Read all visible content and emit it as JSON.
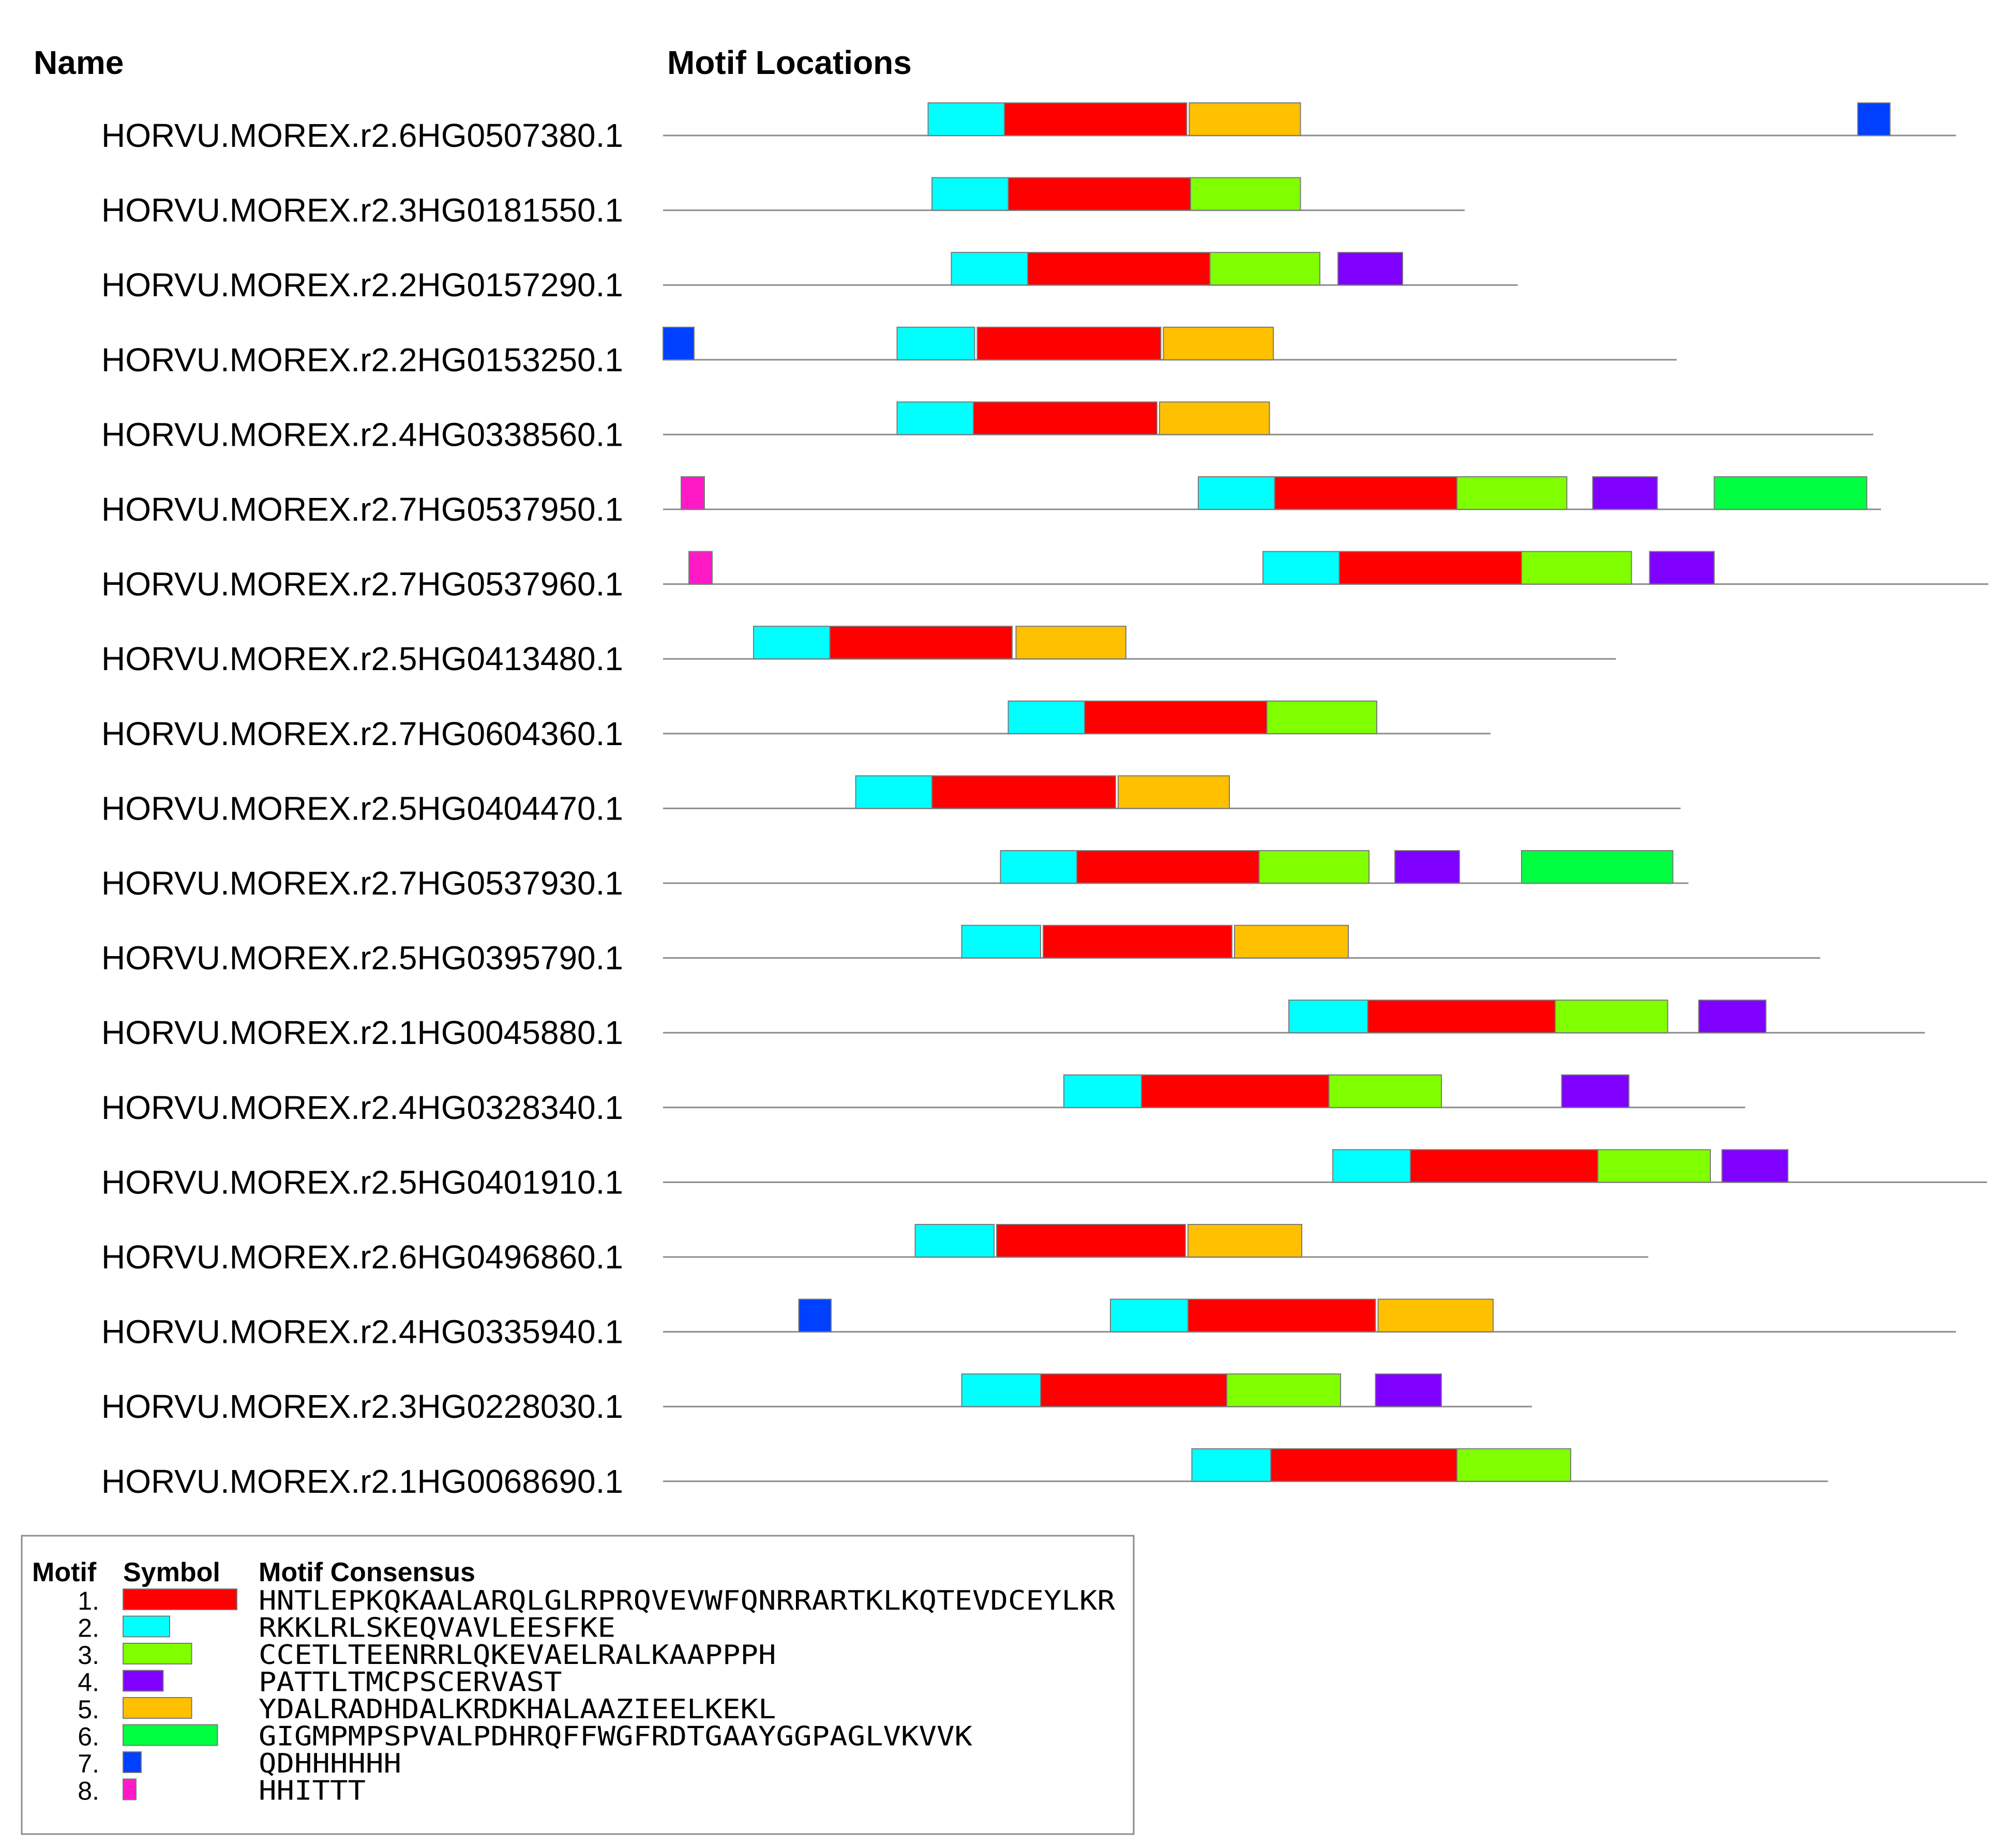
{
  "headers": {
    "name": "Name",
    "locations": "Motif Locations"
  },
  "colors": {
    "1": "#ff0000",
    "2": "#00ffff",
    "3": "#80ff00",
    "4": "#8000ff",
    "5": "#ffc000",
    "6": "#00ff40",
    "7": "#0040ff",
    "8": "#ff1ac6"
  },
  "chart_data": {
    "type": "motif-diagram",
    "sequences": [
      {
        "name": "HORVU.MOREX.r2.6HG0507380.1",
        "length": 1000,
        "motifs": [
          [
            2,
            205,
            264
          ],
          [
            1,
            264,
            405
          ],
          [
            5,
            407,
            493
          ],
          [
            7,
            924,
            949
          ]
        ]
      },
      {
        "name": "HORVU.MOREX.r2.3HG0181550.1",
        "length": 620,
        "motifs": [
          [
            2,
            208,
            267
          ],
          [
            1,
            267,
            408
          ],
          [
            3,
            408,
            493
          ]
        ]
      },
      {
        "name": "HORVU.MOREX.r2.2HG0157290.1",
        "length": 661,
        "motifs": [
          [
            2,
            223,
            282
          ],
          [
            1,
            282,
            423
          ],
          [
            3,
            423,
            508
          ],
          [
            4,
            522,
            572
          ]
        ]
      },
      {
        "name": "HORVU.MOREX.r2.2HG0153250.1",
        "length": 784,
        "motifs": [
          [
            7,
            0,
            24
          ],
          [
            2,
            181,
            241
          ],
          [
            1,
            243,
            385
          ],
          [
            5,
            387,
            472
          ]
        ]
      },
      {
        "name": "HORVU.MOREX.r2.4HG0338560.1",
        "length": 936,
        "motifs": [
          [
            2,
            181,
            240
          ],
          [
            1,
            240,
            382
          ],
          [
            5,
            384,
            469
          ]
        ]
      },
      {
        "name": "HORVU.MOREX.r2.7HG0537950.1",
        "length": 942,
        "motifs": [
          [
            8,
            14,
            32
          ],
          [
            2,
            414,
            473
          ],
          [
            1,
            473,
            614
          ],
          [
            3,
            614,
            699
          ],
          [
            4,
            719,
            769
          ],
          [
            6,
            813,
            931
          ]
        ]
      },
      {
        "name": "HORVU.MOREX.r2.7HG0537960.1",
        "length": 1025,
        "motifs": [
          [
            8,
            20,
            38
          ],
          [
            2,
            464,
            523
          ],
          [
            1,
            523,
            664
          ],
          [
            3,
            664,
            749
          ],
          [
            4,
            763,
            813
          ]
        ]
      },
      {
        "name": "HORVU.MOREX.r2.5HG0413480.1",
        "length": 737,
        "motifs": [
          [
            2,
            70,
            129
          ],
          [
            1,
            129,
            270
          ],
          [
            5,
            273,
            358
          ]
        ]
      },
      {
        "name": "HORVU.MOREX.r2.7HG0604360.1",
        "length": 640,
        "motifs": [
          [
            2,
            267,
            326
          ],
          [
            1,
            326,
            467
          ],
          [
            3,
            467,
            552
          ]
        ]
      },
      {
        "name": "HORVU.MOREX.r2.5HG0404470.1",
        "length": 787,
        "motifs": [
          [
            2,
            149,
            208
          ],
          [
            1,
            208,
            350
          ],
          [
            5,
            352,
            438
          ]
        ]
      },
      {
        "name": "HORVU.MOREX.r2.7HG0537930.1",
        "length": 793,
        "motifs": [
          [
            2,
            261,
            320
          ],
          [
            1,
            320,
            461
          ],
          [
            3,
            461,
            546
          ],
          [
            4,
            566,
            616
          ],
          [
            6,
            664,
            781
          ]
        ]
      },
      {
        "name": "HORVU.MOREX.r2.5HG0395790.1",
        "length": 895,
        "motifs": [
          [
            2,
            231,
            292
          ],
          [
            1,
            294,
            440
          ],
          [
            5,
            442,
            530
          ]
        ]
      },
      {
        "name": "HORVU.MOREX.r2.1HG0045880.1",
        "length": 976,
        "motifs": [
          [
            2,
            484,
            545
          ],
          [
            1,
            545,
            690
          ],
          [
            3,
            690,
            777
          ],
          [
            4,
            801,
            853
          ]
        ]
      },
      {
        "name": "HORVU.MOREX.r2.4HG0328340.1",
        "length": 837,
        "motifs": [
          [
            2,
            310,
            370
          ],
          [
            1,
            370,
            515
          ],
          [
            3,
            515,
            602
          ],
          [
            4,
            695,
            747
          ]
        ]
      },
      {
        "name": "HORVU.MOREX.r2.5HG0401910.1",
        "length": 1024,
        "motifs": [
          [
            2,
            518,
            578
          ],
          [
            1,
            578,
            723
          ],
          [
            3,
            723,
            810
          ],
          [
            4,
            819,
            870
          ]
        ]
      },
      {
        "name": "HORVU.MOREX.r2.6HG0496860.1",
        "length": 762,
        "motifs": [
          [
            2,
            195,
            256
          ],
          [
            1,
            258,
            404
          ],
          [
            5,
            406,
            494
          ]
        ]
      },
      {
        "name": "HORVU.MOREX.r2.4HG0335940.1",
        "length": 1000,
        "motifs": [
          [
            7,
            105,
            130
          ],
          [
            2,
            346,
            406
          ],
          [
            1,
            406,
            551
          ],
          [
            5,
            553,
            642
          ]
        ]
      },
      {
        "name": "HORVU.MOREX.r2.3HG0228030.1",
        "length": 672,
        "motifs": [
          [
            2,
            231,
            292
          ],
          [
            1,
            292,
            436
          ],
          [
            3,
            436,
            524
          ],
          [
            4,
            551,
            602
          ]
        ]
      },
      {
        "name": "HORVU.MOREX.r2.1HG0068690.1",
        "length": 901,
        "motifs": [
          [
            2,
            409,
            470
          ],
          [
            1,
            470,
            614
          ],
          [
            3,
            614,
            702
          ]
        ]
      }
    ]
  },
  "legend": {
    "headers": {
      "motif": "Motif",
      "symbol": "Symbol",
      "consensus": "Motif Consensus"
    },
    "items": [
      {
        "num": "1.",
        "motif": 1,
        "symbol_size": 88,
        "consensus": "HNTLEPKQKAALARQLGLRPRQVEVWFQNRRARTKLKQTEVDCEYLKR"
      },
      {
        "num": "2.",
        "motif": 2,
        "symbol_size": 36,
        "consensus": "RKKLRLSKEQVAVLEESFKE"
      },
      {
        "num": "3.",
        "motif": 3,
        "symbol_size": 53,
        "consensus": "CCETLTEENRRLQKEVAELRALKAAPPPH"
      },
      {
        "num": "4.",
        "motif": 4,
        "symbol_size": 31,
        "consensus": "PATTLTMCPSCERVAST"
      },
      {
        "num": "5.",
        "motif": 5,
        "symbol_size": 53,
        "consensus": "YDALRADHDALKRDKHALAAZIEELKEKL"
      },
      {
        "num": "6.",
        "motif": 6,
        "symbol_size": 73,
        "consensus": "GIGMPMPSPVALPDHRQFFWGFRDTGAAYGGPAGLVKVVK"
      },
      {
        "num": "7.",
        "motif": 7,
        "symbol_size": 14,
        "consensus": "QDHHHHHH"
      },
      {
        "num": "8.",
        "motif": 8,
        "symbol_size": 10,
        "consensus": "HHITTT"
      }
    ]
  }
}
